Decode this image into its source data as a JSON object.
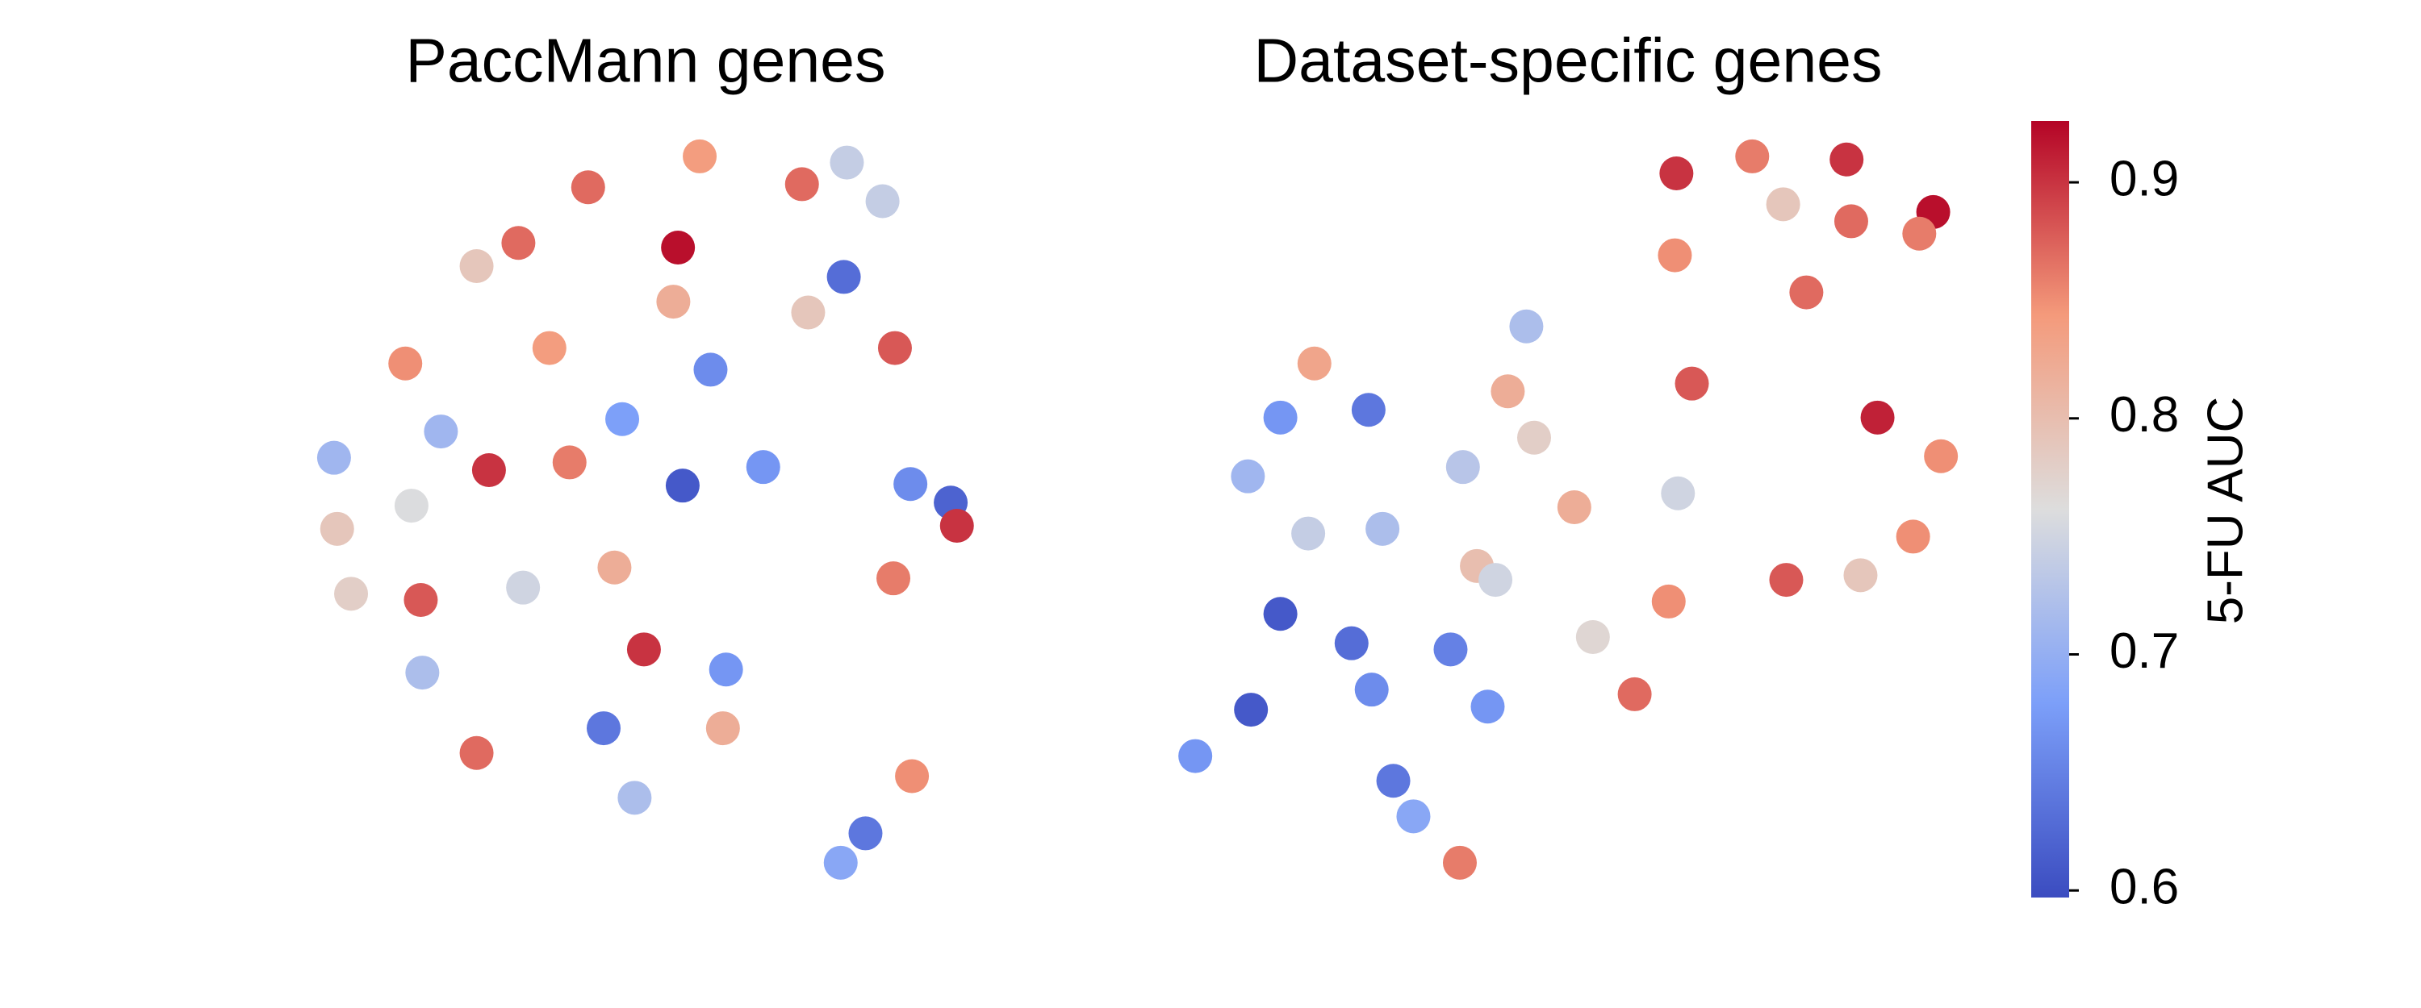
{
  "chart_data": [
    {
      "type": "scatter",
      "title": "PaccMann genes",
      "xlim": [
        190,
        640
      ],
      "ylim": [
        60,
        600
      ],
      "x": [
        452,
        380,
        518,
        547,
        570,
        335,
        308,
        438,
        545,
        435,
        522,
        578,
        262,
        355,
        459,
        402,
        285,
        216,
        316,
        368,
        441,
        493,
        588,
        614,
        618,
        266,
        218,
        338,
        397,
        227,
        272,
        577,
        416,
        469,
        273,
        390,
        467,
        308,
        589,
        410,
        559,
        543
      ],
      "y": [
        551,
        531,
        533,
        547,
        522,
        495,
        480,
        492,
        473,
        457,
        450,
        427,
        417,
        427,
        413,
        381,
        373,
        356,
        348,
        353,
        338,
        350,
        339,
        327,
        312,
        325,
        310,
        272,
        285,
        268,
        264,
        278,
        232,
        219,
        217,
        181,
        181,
        165,
        150,
        136,
        113,
        94
      ],
      "values": [
        0.84,
        0.87,
        0.87,
        0.74,
        0.74,
        0.87,
        0.79,
        0.92,
        0.63,
        0.82,
        0.79,
        0.88,
        0.85,
        0.84,
        0.66,
        0.68,
        0.71,
        0.71,
        0.9,
        0.86,
        0.61,
        0.67,
        0.66,
        0.62,
        0.9,
        0.76,
        0.79,
        0.75,
        0.82,
        0.78,
        0.88,
        0.86,
        0.9,
        0.67,
        0.72,
        0.64,
        0.82,
        0.87,
        0.85,
        0.72,
        0.64,
        0.69
      ]
    },
    {
      "type": "scatter",
      "title": "Dataset-specific genes",
      "xlim": [
        750,
        1280
      ],
      "ylim": [
        60,
        600
      ],
      "x": [
        1083,
        1132,
        1193,
        1249,
        1152,
        1196,
        1240,
        1082,
        1167,
        986,
        849,
        1093,
        884,
        827,
        974,
        991,
        1213,
        1254,
        806,
        945,
        1084,
        1017,
        845,
        893,
        954,
        966,
        1236,
        1154,
        1202,
        827,
        1078,
        1029,
        873,
        937,
        886,
        961,
        1056,
        808,
        772,
        900,
        913,
        943
      ],
      "y": [
        540,
        551,
        549,
        515,
        520,
        509,
        501,
        487,
        463,
        441,
        417,
        404,
        387,
        382,
        399,
        369,
        382,
        357,
        344,
        350,
        333,
        324,
        307,
        310,
        286,
        277,
        305,
        277,
        280,
        255,
        263,
        240,
        236,
        232,
        206,
        195,
        203,
        193,
        163,
        147,
        124,
        94
      ],
      "values": [
        0.9,
        0.86,
        0.9,
        0.92,
        0.79,
        0.87,
        0.86,
        0.85,
        0.87,
        0.72,
        0.83,
        0.88,
        0.64,
        0.67,
        0.82,
        0.78,
        0.91,
        0.85,
        0.71,
        0.73,
        0.75,
        0.82,
        0.74,
        0.72,
        0.8,
        0.75,
        0.85,
        0.88,
        0.79,
        0.61,
        0.85,
        0.77,
        0.63,
        0.65,
        0.66,
        0.67,
        0.87,
        0.61,
        0.67,
        0.64,
        0.69,
        0.86
      ],
      "colorbar": {
        "label": "5-FU AUC",
        "colormap": "coolwarm",
        "lim": [
          0.597,
          0.926
        ],
        "ticks": [
          0.6,
          0.7,
          0.8,
          0.9
        ]
      }
    }
  ]
}
